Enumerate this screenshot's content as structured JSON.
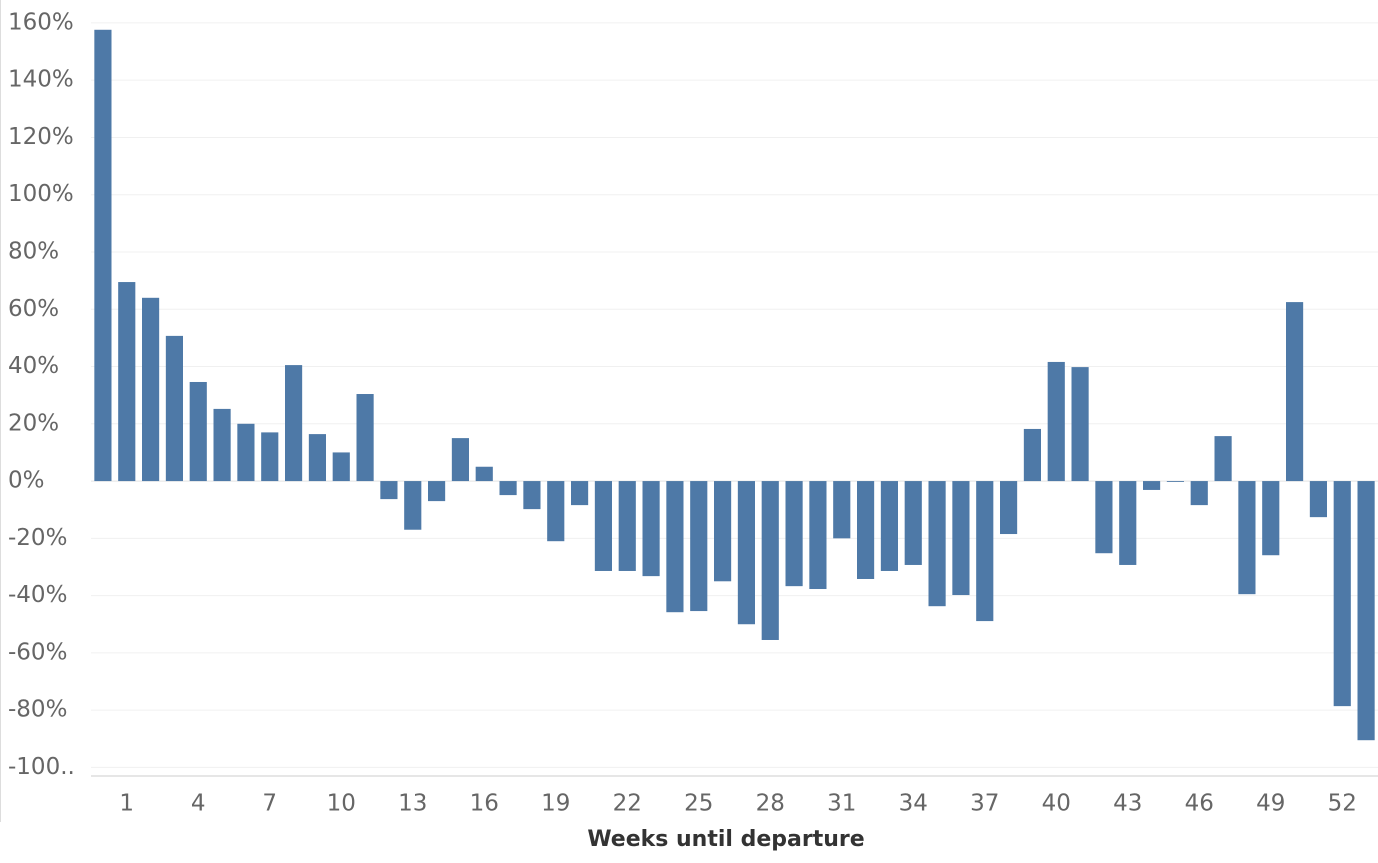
{
  "chart_data": {
    "type": "bar",
    "x_label": "Weeks until departure",
    "categories": [
      null,
      1,
      null,
      null,
      4,
      null,
      null,
      7,
      null,
      null,
      10,
      null,
      null,
      13,
      null,
      null,
      16,
      null,
      null,
      19,
      null,
      null,
      22,
      null,
      null,
      25,
      null,
      null,
      28,
      null,
      null,
      31,
      null,
      null,
      34,
      null,
      null,
      37,
      null,
      null,
      40,
      null,
      null,
      43,
      null,
      null,
      46,
      null,
      null,
      49,
      null,
      null,
      52,
      null
    ],
    "values": [
      157.6,
      69.5,
      64,
      50.7,
      34.6,
      25.2,
      20,
      17,
      40.5,
      16.4,
      10,
      30.4,
      -6.3,
      -17,
      -7,
      15,
      5,
      -4.9,
      -9.8,
      -21,
      -8.4,
      -31.4,
      -31.4,
      -33.2,
      -45.8,
      -45.4,
      -35,
      -50,
      -55.5,
      -36.7,
      -37.7,
      -20,
      -34.2,
      -31.4,
      -29.3,
      -43.7,
      -39.8,
      -48.9,
      -18.5,
      18.2,
      41.6,
      39.8,
      -25.2,
      -29.3,
      -3.1,
      -0.3,
      -8.4,
      15.7,
      -39.5,
      -25.9,
      62.5,
      -12.6,
      -78.6,
      -90.5
    ],
    "color": "#4e79a7",
    "ylim": [
      -103,
      168
    ],
    "yticks": [
      {
        "value": -100,
        "label": "-100.."
      },
      {
        "value": -80,
        "label": "-80%"
      },
      {
        "value": -60,
        "label": "-60%"
      },
      {
        "value": -40,
        "label": "-40%"
      },
      {
        "value": -20,
        "label": "-20%"
      },
      {
        "value": 0,
        "label": "0%"
      },
      {
        "value": 20,
        "label": "20%"
      },
      {
        "value": 40,
        "label": "40%"
      },
      {
        "value": 60,
        "label": "60%"
      },
      {
        "value": 80,
        "label": "80%"
      },
      {
        "value": 100,
        "label": "100%"
      },
      {
        "value": 120,
        "label": "120%"
      },
      {
        "value": 140,
        "label": "140%"
      },
      {
        "value": 160,
        "label": "160%"
      }
    ],
    "grid": true
  }
}
